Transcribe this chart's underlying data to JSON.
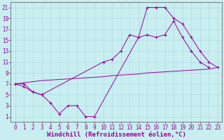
{
  "xlabel": "Windchill (Refroidissement éolien,°C)",
  "xlim": [
    -0.5,
    23.5
  ],
  "ylim": [
    0,
    22
  ],
  "xticks": [
    0,
    1,
    2,
    3,
    4,
    5,
    6,
    7,
    8,
    9,
    10,
    11,
    12,
    13,
    14,
    15,
    16,
    17,
    18,
    19,
    20,
    21,
    22,
    23
  ],
  "yticks": [
    1,
    3,
    5,
    7,
    9,
    11,
    13,
    15,
    17,
    19,
    21
  ],
  "background_color": "#c8eef0",
  "grid_color": "#a8d8e0",
  "line_color": "#990099",
  "curve1_x": [
    0,
    1,
    2,
    3,
    4,
    5,
    6,
    7,
    8,
    9,
    14,
    15,
    16,
    17,
    18,
    19,
    20,
    21,
    22,
    23
  ],
  "curve1_y": [
    7.0,
    6.5,
    5.5,
    5.0,
    3.5,
    1.5,
    3.0,
    3.0,
    1.0,
    1.0,
    15.5,
    21.0,
    21.0,
    21.0,
    19.0,
    18.0,
    15.5,
    13.0,
    11.0,
    10.0
  ],
  "curve2_x": [
    0,
    1,
    2,
    3,
    10,
    11,
    12,
    13,
    14,
    15,
    16,
    17,
    18,
    19,
    20,
    21,
    22
  ],
  "curve2_y": [
    7.0,
    7.0,
    5.5,
    5.0,
    11.0,
    11.5,
    13.0,
    16.0,
    15.5,
    16.0,
    15.5,
    16.0,
    18.5,
    15.5,
    13.0,
    11.0,
    10.0
  ],
  "curve3_x": [
    0,
    1,
    2,
    3,
    4,
    5,
    6,
    7,
    8,
    9,
    10,
    11,
    12,
    13,
    14,
    15,
    16,
    17,
    18,
    19,
    20,
    21,
    22,
    23
  ],
  "curve3_y": [
    7.0,
    7.2,
    7.4,
    7.6,
    7.7,
    7.8,
    7.9,
    8.0,
    8.1,
    8.2,
    8.3,
    8.5,
    8.6,
    8.7,
    8.8,
    9.0,
    9.1,
    9.2,
    9.3,
    9.4,
    9.5,
    9.6,
    9.7,
    10.0
  ],
  "font_size": 6.5,
  "tick_font_size": 5.5,
  "marker_size": 2.5,
  "lw": 0.7
}
